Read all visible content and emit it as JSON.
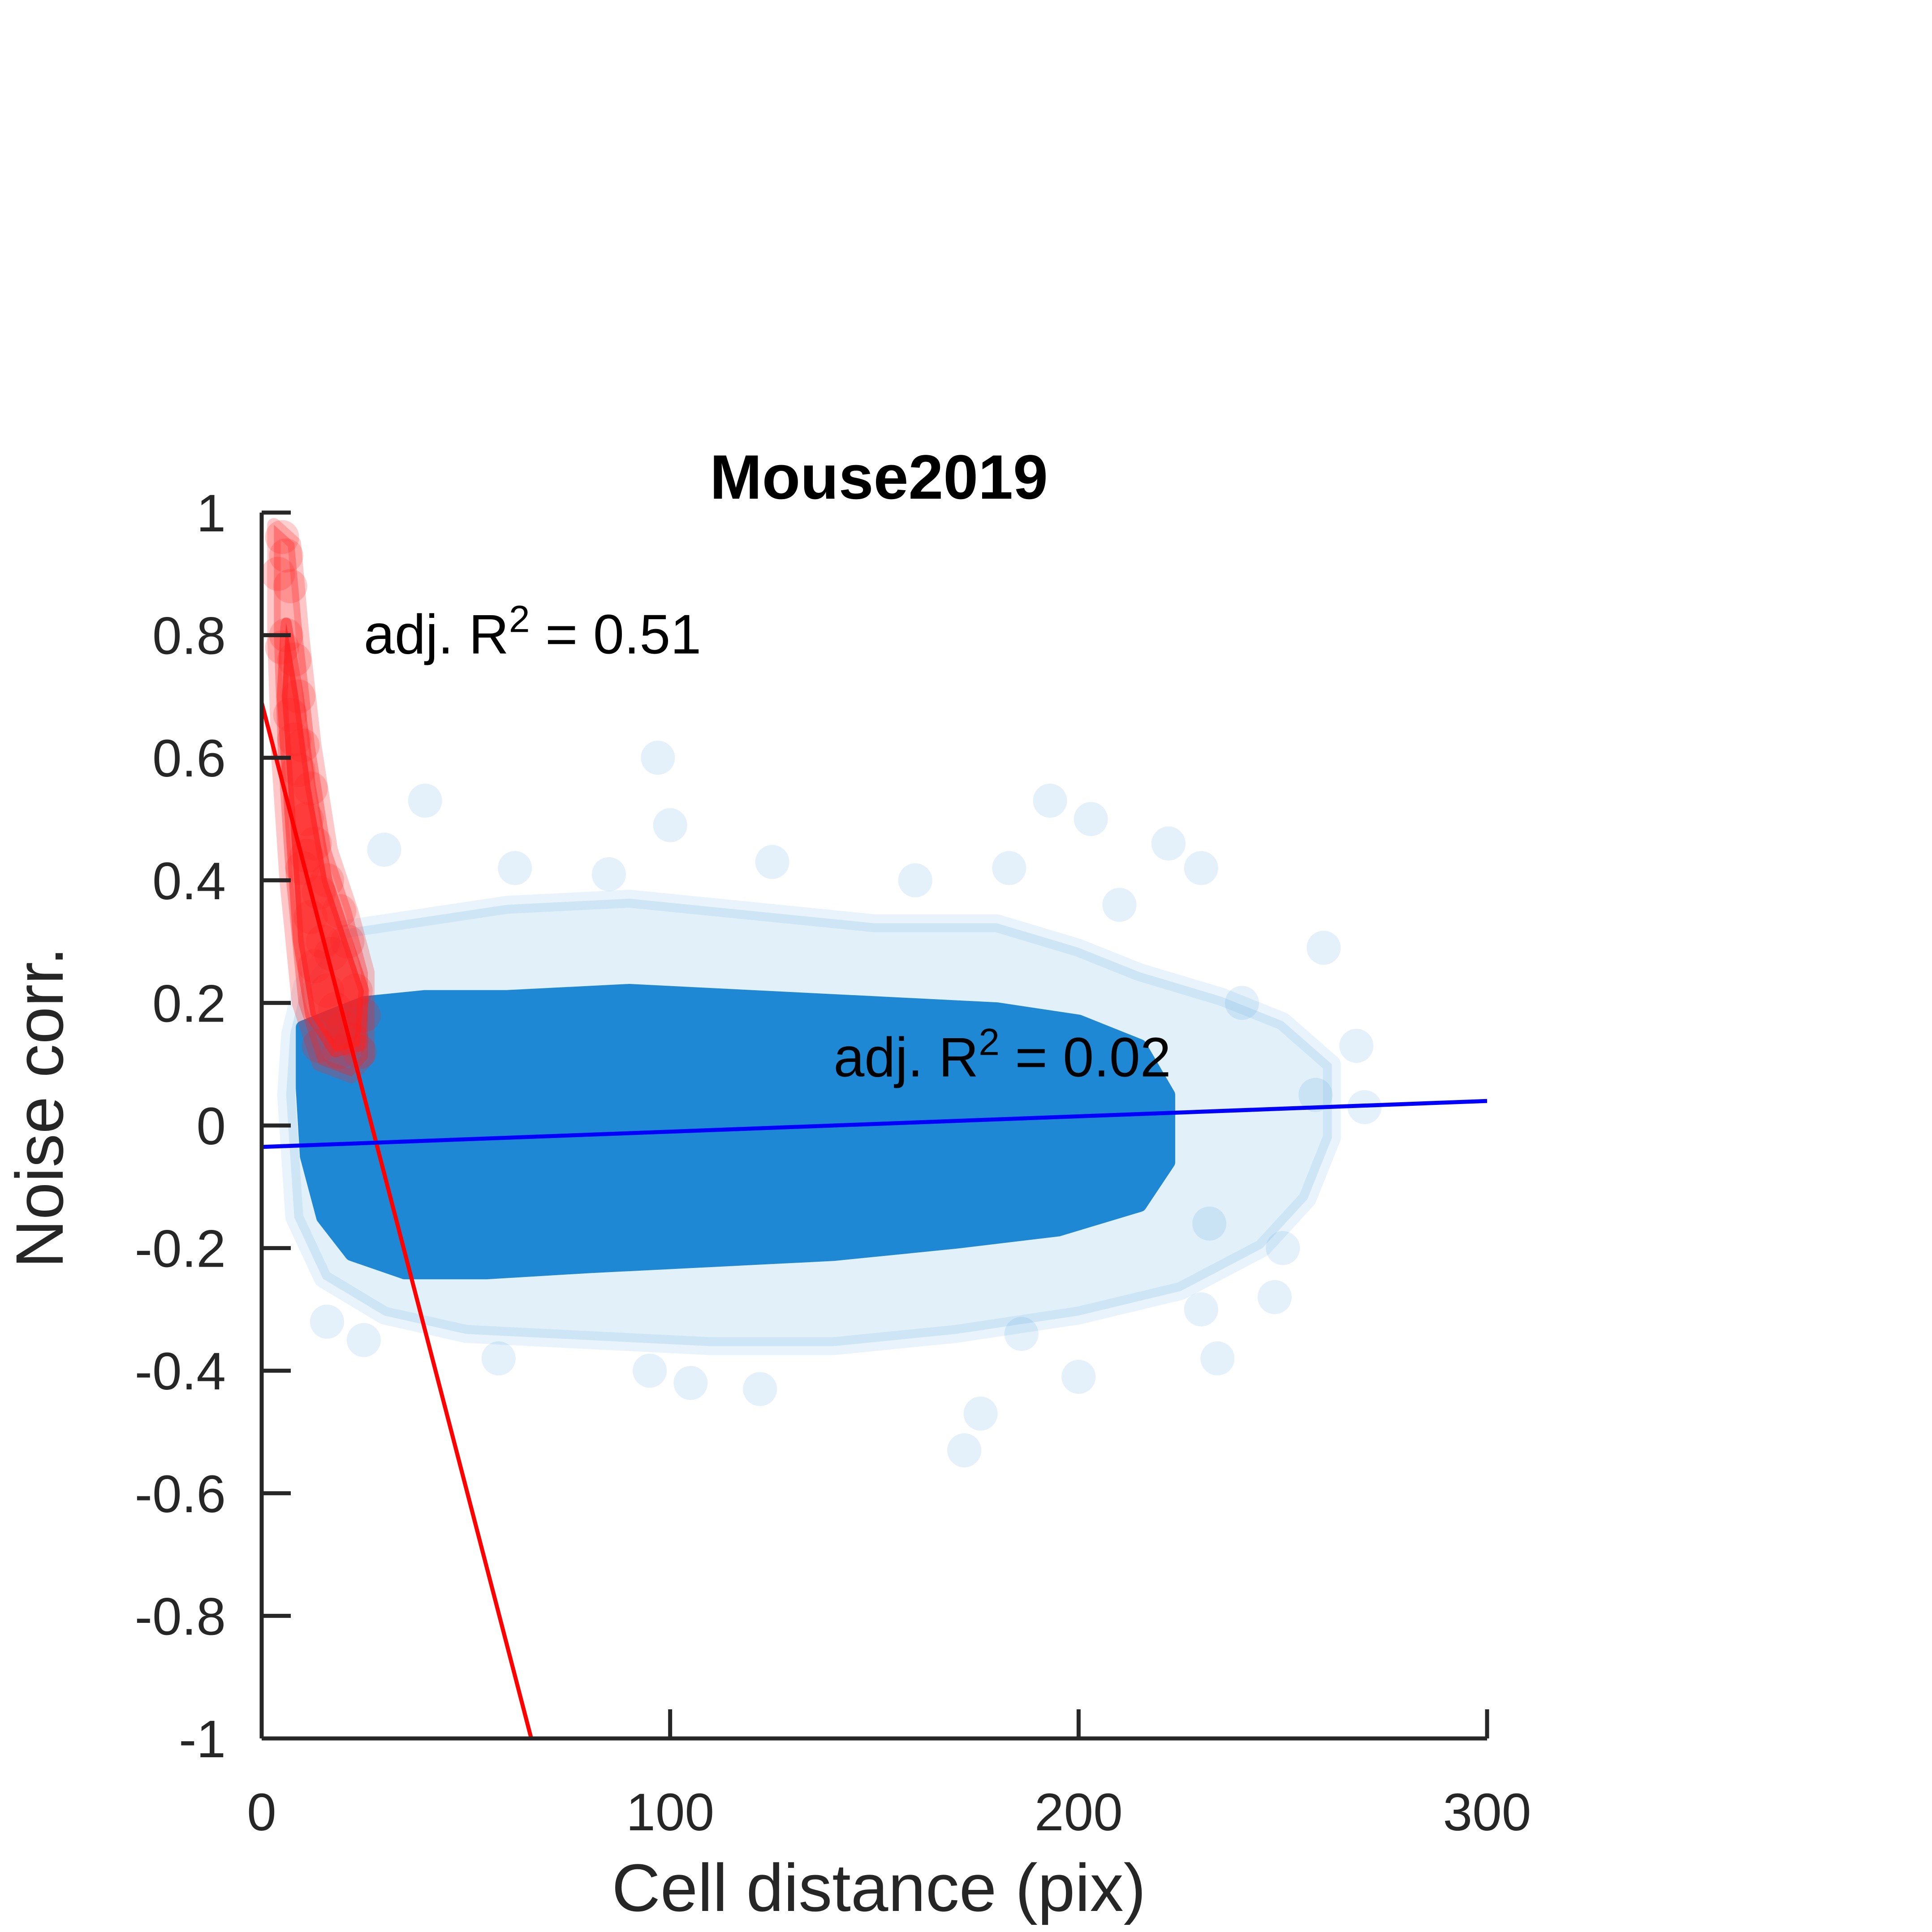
{
  "chart_data": {
    "type": "scatter",
    "title": "Mouse2019",
    "xlabel": "Cell distance (pix)",
    "ylabel": "Noise corr.",
    "xlim": [
      0,
      300
    ],
    "ylim": [
      -1,
      1
    ],
    "xticks": [
      0,
      100,
      200,
      300
    ],
    "xtick_labels": [
      "0",
      "100",
      "200",
      "300"
    ],
    "yticks": [
      -1,
      -0.8,
      -0.6,
      -0.4,
      -0.2,
      0,
      0.2,
      0.4,
      0.6,
      0.8,
      1
    ],
    "ytick_labels": [
      "-1",
      "-0.8",
      "-0.6",
      "-0.4",
      "-0.2",
      "0",
      "0.2",
      "0.4",
      "0.6",
      "0.8",
      "1"
    ],
    "grid": false,
    "series": [
      {
        "color": "#1f88d4",
        "opacity": 0.08,
        "description_of_density": "dense cloud",
        "points": [
          [
            40,
            0.53
          ],
          [
            97,
            0.6
          ],
          [
            100,
            0.49
          ],
          [
            193,
            0.53
          ],
          [
            203,
            0.5
          ],
          [
            222,
            0.46
          ],
          [
            30,
            0.45
          ],
          [
            125,
            0.43
          ],
          [
            160,
            0.4
          ],
          [
            230,
            0.42
          ],
          [
            260,
            0.29
          ],
          [
            268,
            0.13
          ],
          [
            270,
            0.03
          ],
          [
            250,
            -0.2
          ],
          [
            248,
            -0.28
          ],
          [
            234,
            -0.38
          ],
          [
            176,
            -0.47
          ],
          [
            172,
            -0.53
          ],
          [
            200,
            -0.41
          ],
          [
            122,
            -0.43
          ],
          [
            105,
            -0.42
          ],
          [
            95,
            -0.4
          ],
          [
            58,
            -0.38
          ],
          [
            16,
            -0.32
          ],
          [
            25,
            -0.35
          ],
          [
            258,
            0.05
          ],
          [
            240,
            0.2
          ],
          [
            62,
            0.42
          ],
          [
            85,
            0.41
          ],
          [
            183,
            0.42
          ],
          [
            210,
            0.36
          ],
          [
            230,
            -0.3
          ],
          [
            232,
            -0.16
          ],
          [
            186,
            -0.34
          ]
        ]
      },
      {
        "color": "#ff2020",
        "opacity": 0.12,
        "points": [
          [
            5,
            0.96
          ],
          [
            6,
            0.93
          ],
          [
            4,
            0.9
          ],
          [
            7,
            0.88
          ],
          [
            6,
            0.8
          ],
          [
            8,
            0.76
          ],
          [
            5,
            0.78
          ],
          [
            9,
            0.7
          ],
          [
            7,
            0.67
          ],
          [
            10,
            0.62
          ],
          [
            9,
            0.58
          ],
          [
            12,
            0.55
          ],
          [
            11,
            0.5
          ],
          [
            13,
            0.46
          ],
          [
            10,
            0.42
          ],
          [
            14,
            0.38
          ],
          [
            12,
            0.34
          ],
          [
            15,
            0.3
          ],
          [
            13,
            0.26
          ],
          [
            16,
            0.22
          ],
          [
            18,
            0.19
          ],
          [
            20,
            0.16
          ],
          [
            22,
            0.14
          ],
          [
            24,
            0.12
          ],
          [
            19,
            0.12
          ],
          [
            14,
            0.13
          ],
          [
            25,
            0.18
          ],
          [
            23,
            0.22
          ],
          [
            17,
            0.28
          ],
          [
            19,
            0.35
          ],
          [
            21,
            0.3
          ],
          [
            8,
            0.63
          ],
          [
            11,
            0.44
          ],
          [
            16,
            0.4
          ]
        ]
      }
    ],
    "fits": [
      {
        "color": "#ff0000",
        "x": [
          0,
          66
        ],
        "y": [
          0.69,
          -1.0
        ]
      },
      {
        "color": "#0000ff",
        "x": [
          0,
          300
        ],
        "y": [
          -0.035,
          0.04
        ]
      }
    ],
    "annotations": [
      {
        "text": "adj. R",
        "sup": "2",
        "rest": " = 0.51",
        "x": 25,
        "y": 0.77
      },
      {
        "text": "adj. R",
        "sup": "2",
        "rest": " = 0.02",
        "x": 140,
        "y": 0.08
      }
    ]
  }
}
